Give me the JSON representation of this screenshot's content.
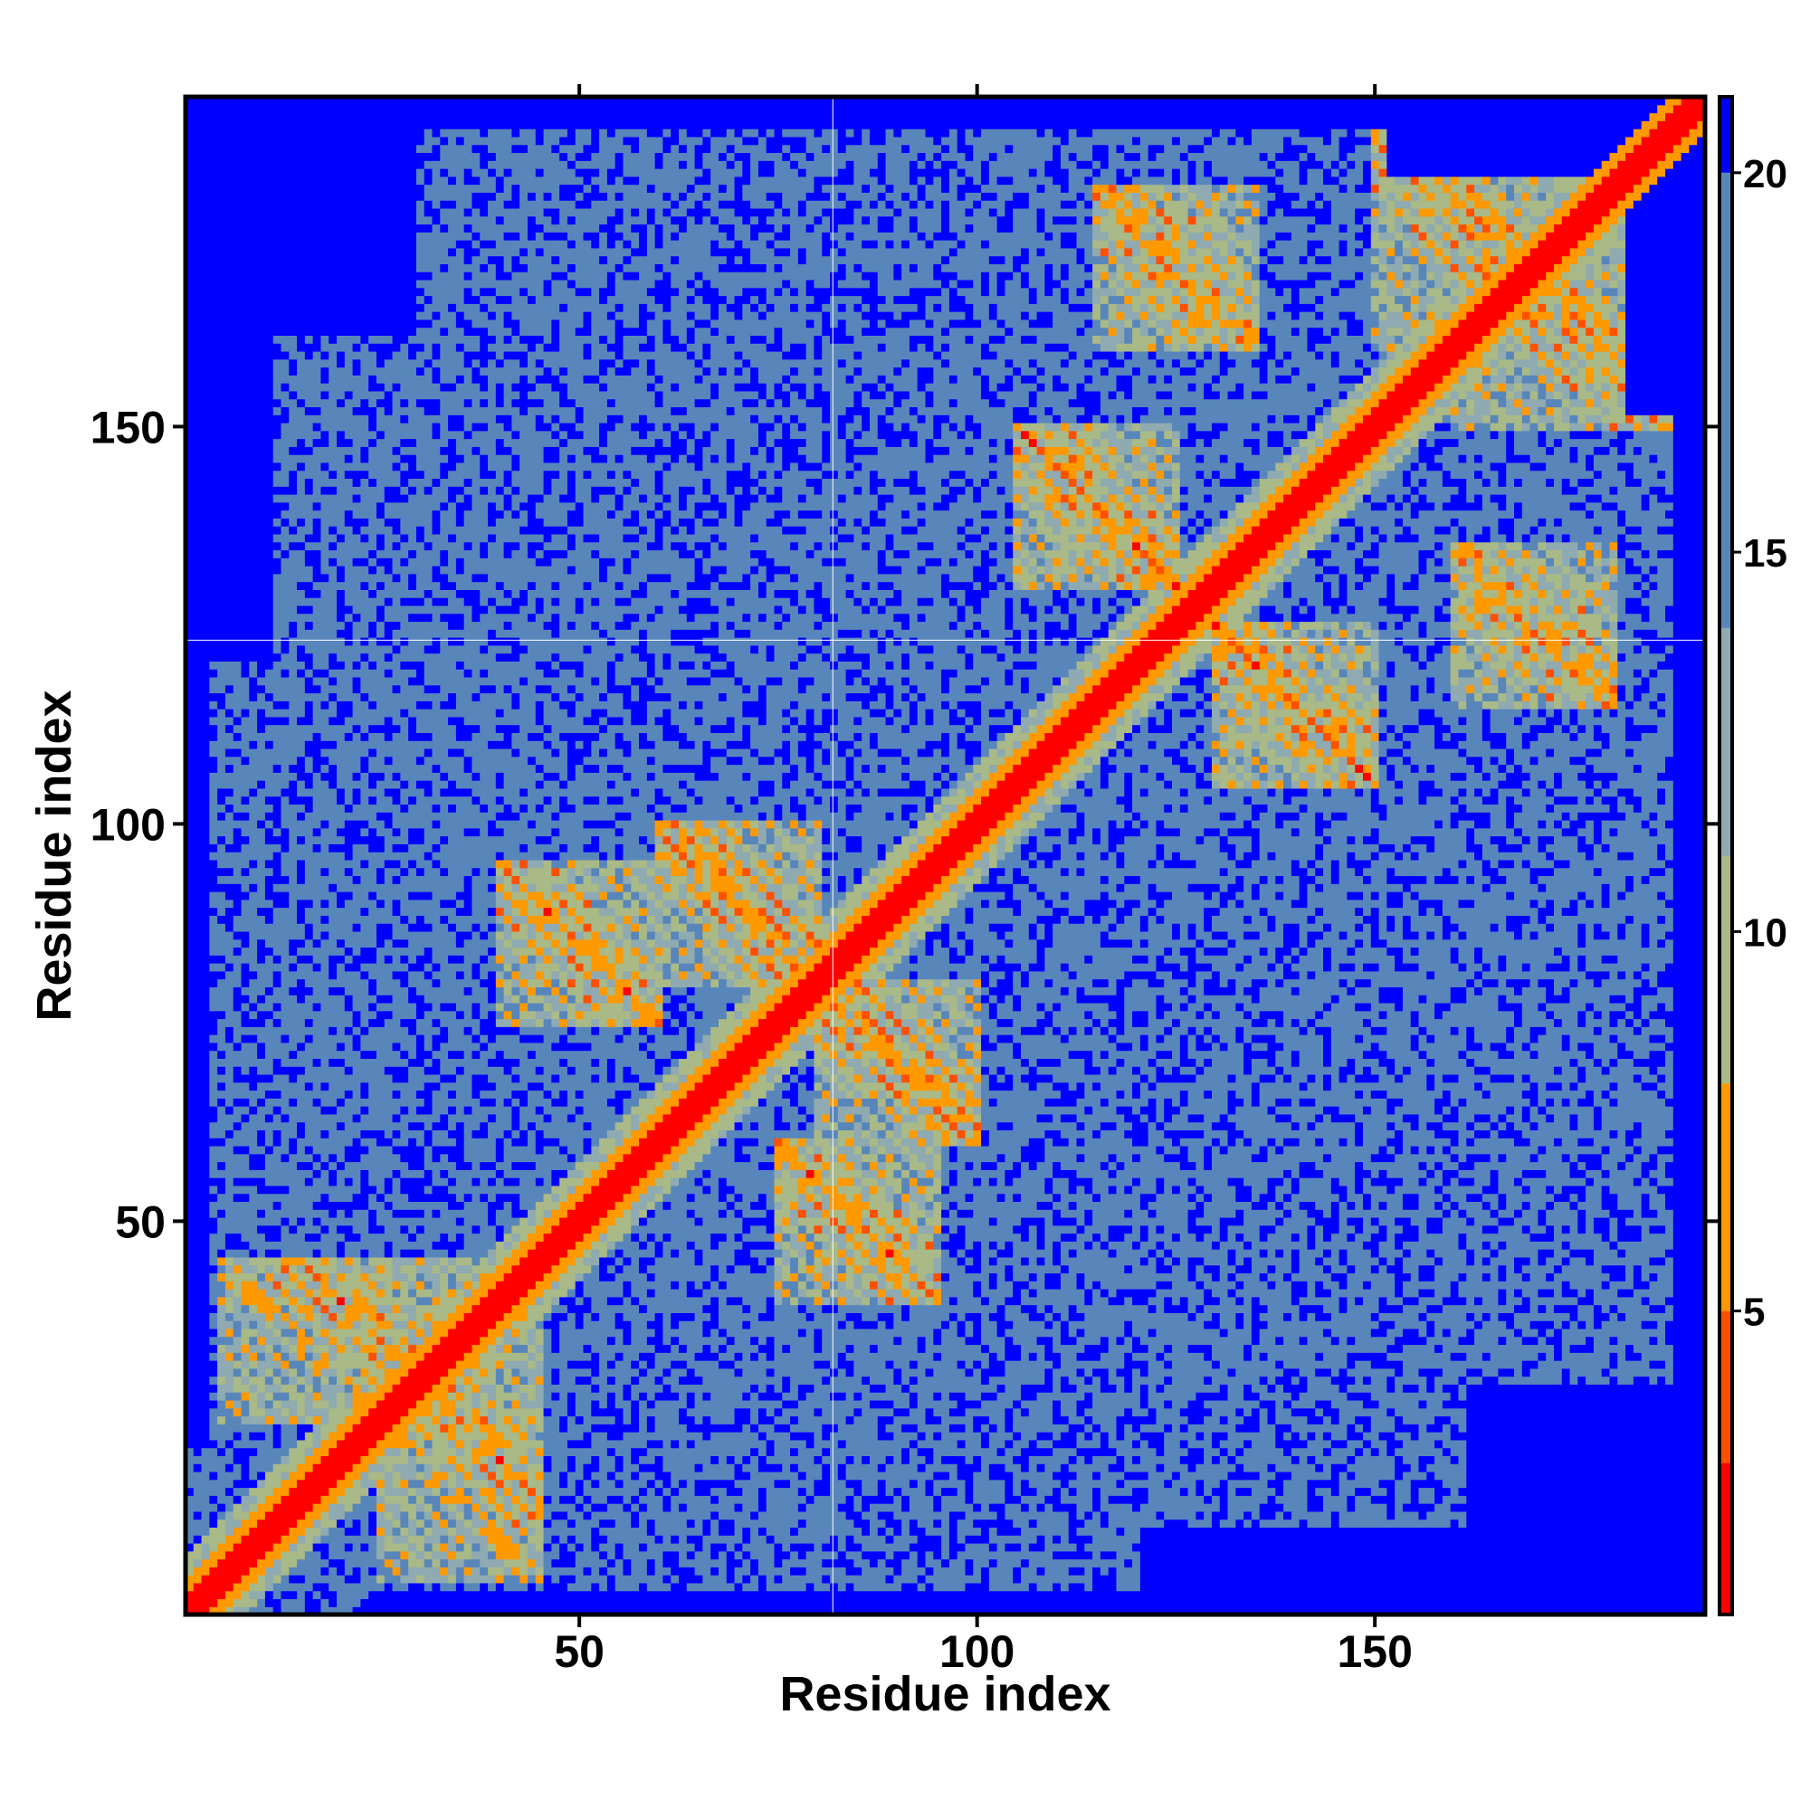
{
  "chart_data": {
    "type": "heatmap",
    "title": "",
    "xlabel": "Residue index",
    "ylabel": "Residue index",
    "n_residues": 191,
    "xlim": [
      1,
      191
    ],
    "ylim": [
      1,
      191
    ],
    "x_ticks": [
      50,
      100,
      150
    ],
    "y_ticks": [
      50,
      100,
      150
    ],
    "colorbar": {
      "ticks": [
        5,
        10,
        15,
        20
      ],
      "range": [
        1,
        21
      ],
      "bands": [
        {
          "max": 3,
          "color": "#ff0000"
        },
        {
          "max": 5,
          "color": "#ff5000"
        },
        {
          "max": 8,
          "color": "#ff9900"
        },
        {
          "max": 11,
          "color": "#a9b987"
        },
        {
          "max": 14,
          "color": "#8faab0"
        },
        {
          "max": 20,
          "color": "#5886bb"
        },
        {
          "max": 21,
          "color": "#0000ff"
        }
      ]
    },
    "value_meaning": "pairwise distance between residues (symmetric matrix, smallest along the diagonal)",
    "structure_features": [
      {
        "residues": [
          5,
          45
        ],
        "contact_with": [
          25,
          45
        ],
        "value": 8
      },
      {
        "residues": [
          40,
          60
        ],
        "contact_with": [
          75,
          95
        ],
        "value": 6
      },
      {
        "residues": [
          60,
          80
        ],
        "contact_with": [
          80,
          100
        ],
        "value": 7
      },
      {
        "residues": [
          105,
          125
        ],
        "contact_with": [
          130,
          150
        ],
        "value": 7
      },
      {
        "residues": [
          115,
          135
        ],
        "contact_with": [
          160,
          180
        ],
        "value": 6
      },
      {
        "residues": [
          150,
          175
        ],
        "contact_with": [
          160,
          190
        ],
        "value": 8
      }
    ]
  }
}
